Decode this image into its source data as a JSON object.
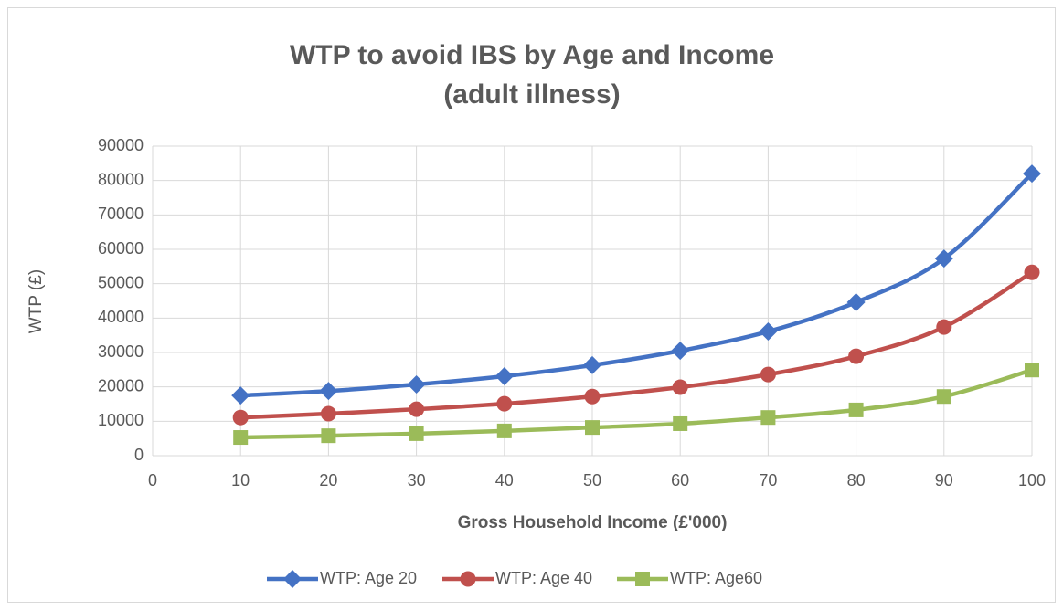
{
  "chart_data": {
    "type": "line",
    "title": [
      "WTP to avoid IBS by Age and Income",
      "(adult illness)"
    ],
    "x_label": "Gross Household Income (£'000)",
    "y_label": "WTP (£)",
    "x": [
      10,
      20,
      30,
      40,
      50,
      60,
      70,
      80,
      90,
      100
    ],
    "series": [
      {
        "name": "WTP: Age 20",
        "color": "#4472c4",
        "marker": "diamond",
        "values": [
          17500,
          18800,
          20700,
          23100,
          26300,
          30500,
          36100,
          44600,
          57300,
          82000
        ]
      },
      {
        "name": "WTP: Age 40",
        "color": "#c0504d",
        "marker": "circle",
        "values": [
          11100,
          12200,
          13500,
          15100,
          17200,
          19900,
          23600,
          28900,
          37400,
          53300
        ]
      },
      {
        "name": "WTP: Age60",
        "color": "#9bbb59",
        "marker": "square",
        "values": [
          5300,
          5800,
          6400,
          7200,
          8200,
          9300,
          11100,
          13300,
          17200,
          24900
        ]
      }
    ],
    "xlim": [
      0,
      100
    ],
    "xticks": [
      0,
      10,
      20,
      30,
      40,
      50,
      60,
      70,
      80,
      90,
      100
    ],
    "ylim": [
      0,
      90000
    ],
    "yticks": [
      0,
      10000,
      20000,
      30000,
      40000,
      50000,
      60000,
      70000,
      80000,
      90000
    ],
    "grid": true,
    "smooth": true,
    "legend": "bottom"
  }
}
